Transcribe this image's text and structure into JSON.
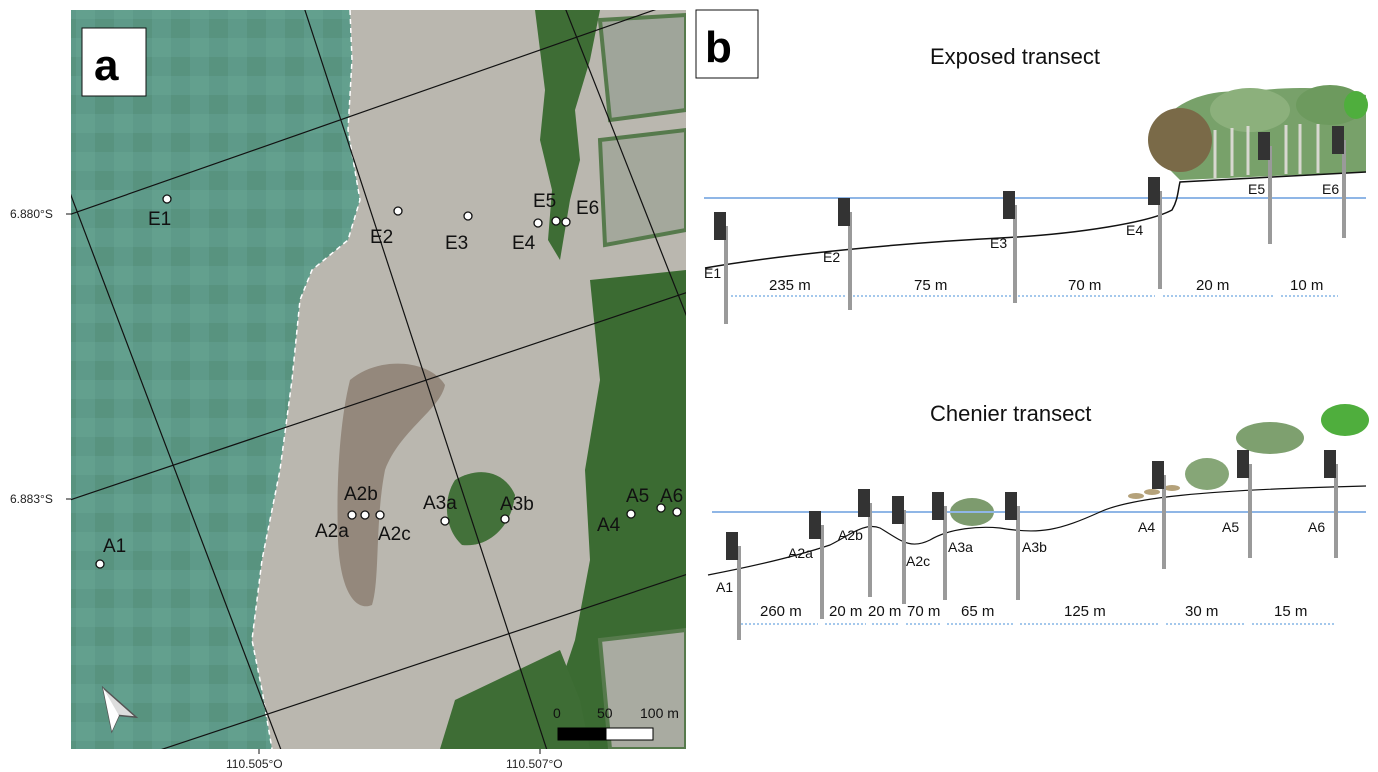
{
  "panel_a": {
    "letter": "a",
    "lat_labels": [
      "6.880°S",
      "6.883°S"
    ],
    "lon_labels": [
      "110.505°O",
      "110.507°O"
    ],
    "stations": [
      "E1",
      "E2",
      "E3",
      "E4",
      "E5",
      "E6",
      "A1",
      "A2a",
      "A2b",
      "A2c",
      "A3a",
      "A3b",
      "A4",
      "A5",
      "A6"
    ],
    "scale": {
      "ticks": [
        "0",
        "50",
        "100 m"
      ]
    },
    "north_arrow": "north-arrow-icon"
  },
  "panel_b": {
    "letter": "b",
    "exposed": {
      "title": "Exposed transect",
      "stations": [
        "E1",
        "E2",
        "E3",
        "E4",
        "E5",
        "E6"
      ],
      "distances": [
        "235 m",
        "75 m",
        "70 m",
        "20 m",
        "10 m"
      ]
    },
    "chenier": {
      "title": "Chenier transect",
      "stations": [
        "A1",
        "A2a",
        "A2b",
        "A2c",
        "A3a",
        "A3b",
        "A4",
        "A5",
        "A6"
      ],
      "distances": [
        "260 m",
        "20 m",
        "20 m",
        "70 m",
        "65 m",
        "125 m",
        "30 m",
        "15 m"
      ]
    }
  },
  "colors": {
    "sea": "#5f9b8a",
    "mudflat": "#b9b6ad",
    "mangrove": "#3f6e33",
    "water_line": "#8fb6e6",
    "dist_arrow": "#4a90d9"
  }
}
